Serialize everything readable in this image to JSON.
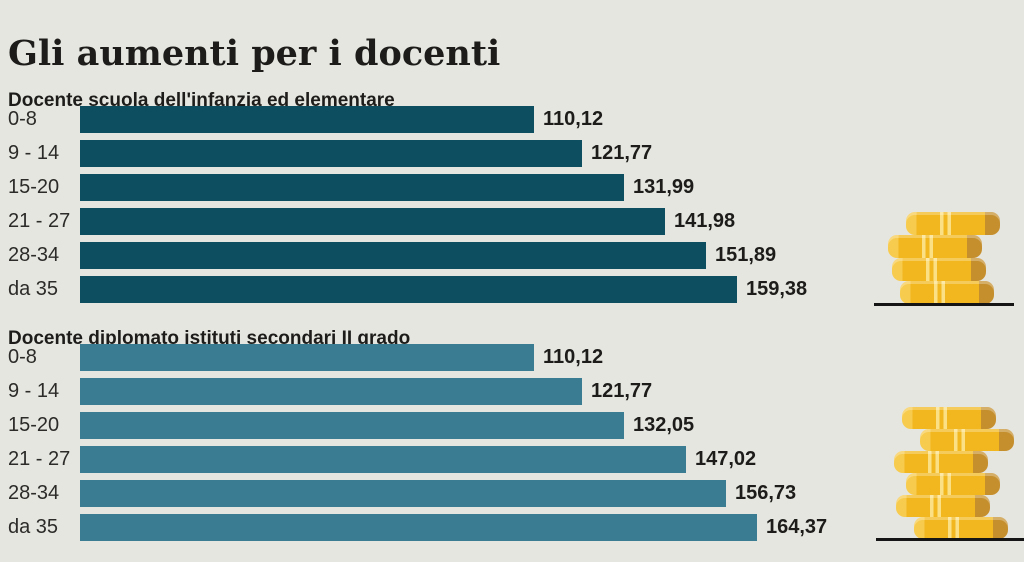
{
  "title": "Gli aumenti per i docenti",
  "colors": {
    "background": "#e5e6e0",
    "section1_bar": "#0d4e61",
    "section2_bar": "#3a7d92",
    "coin_gold": "#f2b71e",
    "coin_gold_dark": "#c58f2e",
    "coin_gold_light": "#fbe085",
    "text": "#1d1c1a"
  },
  "chart_data": [
    {
      "type": "bar",
      "orientation": "horizontal",
      "title": "Docente scuola dell'infanzia ed elementare",
      "categories": [
        "0-8",
        "9 - 14",
        "15-20",
        "21 - 27",
        "28-34",
        "da 35"
      ],
      "values": [
        110.12,
        121.77,
        131.99,
        141.98,
        151.89,
        159.38
      ],
      "value_labels": [
        "110,12",
        "121,77",
        "131,99",
        "141,98",
        "151,89",
        "159,38"
      ],
      "xlim": [
        0,
        170
      ],
      "grid": false,
      "legend": false,
      "value_labels_position": "end-of-bar"
    },
    {
      "type": "bar",
      "orientation": "horizontal",
      "title": "Docente diplomato istituti secondari II grado",
      "categories": [
        "0-8",
        "9 - 14",
        "15-20",
        "21 - 27",
        "28-34",
        "da 35"
      ],
      "values": [
        110.12,
        121.77,
        132.05,
        147.02,
        156.73,
        164.37
      ],
      "value_labels": [
        "110,12",
        "121,77",
        "132,05",
        "147,02",
        "156,73",
        "164,37"
      ],
      "xlim": [
        0,
        170
      ],
      "grid": false,
      "legend": false,
      "value_labels_position": "end-of-bar"
    }
  ],
  "icons": [
    {
      "name": "coin-stack-icon",
      "coins": 4
    },
    {
      "name": "coin-stack-icon",
      "coins": 6
    }
  ]
}
